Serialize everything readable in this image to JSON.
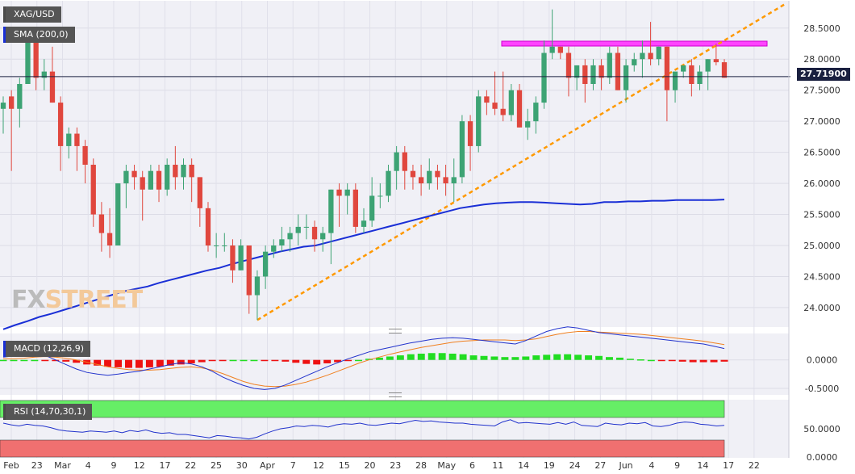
{
  "chart_data": [
    {
      "type": "candlestick",
      "title": "XAG/USD",
      "yticks": [
        24.0,
        24.5,
        25.0,
        25.5,
        26.0,
        26.5,
        27.0,
        27.5,
        28.0,
        28.5
      ],
      "yticklabels": [
        "24.0000",
        "24.5000",
        "25.0000",
        "25.5000",
        "26.0000",
        "26.5000",
        "27.0000",
        "27.5000",
        "28.0000",
        "28.5000"
      ],
      "ylim": [
        23.7,
        28.9
      ],
      "x_ticks": [
        "Feb",
        "23",
        "Mar",
        "4",
        "9",
        "12",
        "17",
        "22",
        "25",
        "30",
        "Apr",
        "7",
        "12",
        "15",
        "20",
        "23",
        "28",
        "May",
        "6",
        "11",
        "14",
        "19",
        "24",
        "27",
        "Jun",
        "4",
        "9",
        "14",
        "17",
        "22"
      ],
      "last_price_label": "27.71900",
      "candles": [
        [
          "Feb 17",
          27.2,
          27.3,
          26.8,
          27.4
        ],
        [
          "Feb 18",
          27.4,
          27.2,
          26.2,
          27.5
        ],
        [
          "Feb 19",
          27.2,
          27.6,
          26.9,
          27.7
        ],
        [
          "Feb 22",
          27.6,
          28.3,
          27.6,
          28.4
        ],
        [
          "Feb 23",
          28.3,
          27.7,
          27.5,
          28.5
        ],
        [
          "Feb 24",
          27.7,
          27.8,
          27.5,
          28.0
        ],
        [
          "Feb 25",
          27.8,
          27.3,
          27.3,
          28.2
        ],
        [
          "Feb 26",
          27.3,
          26.6,
          26.2,
          27.4
        ],
        [
          "Mar 1",
          26.6,
          26.8,
          26.4,
          26.9
        ],
        [
          "Mar 2",
          26.8,
          26.6,
          26.2,
          26.9
        ],
        [
          "Mar 3",
          26.6,
          26.3,
          26.0,
          26.7
        ],
        [
          "Mar 4",
          26.3,
          25.5,
          25.3,
          26.4
        ],
        [
          "Mar 5",
          25.5,
          25.2,
          24.9,
          25.7
        ],
        [
          "Mar 8",
          25.2,
          25.0,
          24.8,
          25.6
        ],
        [
          "Mar 9",
          25.0,
          26.0,
          25.0,
          26.0
        ],
        [
          "Mar 10",
          26.0,
          26.2,
          25.6,
          26.3
        ],
        [
          "Mar 11",
          26.2,
          26.1,
          25.9,
          26.3
        ],
        [
          "Mar 12",
          26.1,
          25.9,
          25.4,
          26.2
        ],
        [
          "Mar 15",
          25.9,
          26.2,
          25.9,
          26.3
        ],
        [
          "Mar 16",
          26.2,
          25.9,
          25.7,
          26.3
        ],
        [
          "Mar 17",
          25.9,
          26.3,
          25.8,
          26.4
        ],
        [
          "Mar 18",
          26.3,
          26.1,
          25.9,
          26.6
        ],
        [
          "Mar 19",
          26.1,
          26.3,
          25.9,
          26.4
        ],
        [
          "Mar 22",
          26.3,
          26.1,
          25.7,
          26.4
        ],
        [
          "Mar 23",
          26.1,
          25.6,
          25.3,
          26.1
        ],
        [
          "Mar 24",
          25.6,
          25.0,
          24.9,
          25.7
        ],
        [
          "Mar 25",
          25.0,
          25.0,
          24.8,
          25.2
        ],
        [
          "Mar 26",
          25.0,
          25.0,
          24.9,
          25.2
        ],
        [
          "Mar 29",
          25.0,
          24.6,
          24.4,
          25.1
        ],
        [
          "Mar 30",
          24.6,
          25.0,
          24.6,
          25.1
        ],
        [
          "Mar 31",
          25.0,
          24.2,
          23.9,
          25.0
        ],
        [
          "Apr 1",
          24.2,
          24.5,
          23.8,
          24.6
        ],
        [
          "Apr 2",
          24.5,
          24.9,
          24.3,
          25.0
        ],
        [
          "Apr 5",
          24.9,
          25.0,
          24.8,
          25.1
        ],
        [
          "Apr 6",
          25.0,
          25.1,
          24.9,
          25.3
        ],
        [
          "Apr 7",
          25.1,
          25.2,
          24.9,
          25.3
        ],
        [
          "Apr 8",
          25.2,
          25.3,
          25.0,
          25.5
        ],
        [
          "Apr 9",
          25.3,
          25.3,
          25.1,
          25.5
        ],
        [
          "Apr 12",
          25.3,
          25.1,
          24.9,
          25.4
        ],
        [
          "Apr 13",
          25.1,
          25.2,
          24.9,
          25.3
        ],
        [
          "Apr 14",
          25.2,
          25.9,
          24.7,
          25.9
        ],
        [
          "Apr 15",
          25.9,
          25.8,
          25.3,
          26.0
        ],
        [
          "Apr 16",
          25.8,
          25.9,
          25.5,
          26.0
        ],
        [
          "Apr 19",
          25.9,
          25.3,
          25.2,
          26.0
        ],
        [
          "Apr 20",
          25.3,
          25.4,
          25.2,
          25.6
        ],
        [
          "Apr 21",
          25.4,
          25.8,
          25.3,
          26.1
        ],
        [
          "Apr 22",
          25.8,
          25.8,
          25.6,
          26.0
        ],
        [
          "Apr 23",
          25.8,
          26.2,
          25.7,
          26.3
        ],
        [
          "Apr 26",
          26.2,
          26.5,
          25.9,
          26.6
        ],
        [
          "Apr 27",
          26.5,
          26.2,
          25.9,
          26.6
        ],
        [
          "Apr 28",
          26.2,
          26.1,
          25.9,
          26.3
        ],
        [
          "Apr 29",
          26.1,
          26.0,
          25.8,
          26.3
        ],
        [
          "Apr 30",
          26.0,
          26.2,
          25.9,
          26.4
        ],
        [
          "May 3",
          26.2,
          26.1,
          25.9,
          26.3
        ],
        [
          "May 4",
          26.1,
          26.0,
          25.8,
          26.3
        ],
        [
          "May 5",
          26.0,
          26.1,
          25.7,
          26.4
        ],
        [
          "May 6",
          26.1,
          27.0,
          26.0,
          27.1
        ],
        [
          "May 7",
          27.0,
          26.6,
          26.2,
          27.1
        ],
        [
          "May 10",
          26.6,
          27.4,
          26.5,
          27.5
        ],
        [
          "May 11",
          27.4,
          27.3,
          27.1,
          27.5
        ],
        [
          "May 12",
          27.3,
          27.2,
          27.1,
          27.8
        ],
        [
          "May 13",
          27.2,
          27.1,
          27.0,
          27.8
        ],
        [
          "May 14",
          27.1,
          27.5,
          27.0,
          27.6
        ],
        [
          "May 17",
          27.5,
          26.9,
          26.9,
          27.6
        ],
        [
          "May 18",
          26.9,
          27.0,
          26.7,
          27.2
        ],
        [
          "May 19",
          27.0,
          27.3,
          26.8,
          27.4
        ],
        [
          "May 20",
          27.3,
          28.1,
          27.2,
          28.3
        ],
        [
          "May 21",
          28.1,
          28.2,
          28.0,
          28.8
        ],
        [
          "May 24",
          28.2,
          28.1,
          28.0,
          28.2
        ],
        [
          "May 25",
          28.1,
          27.7,
          27.4,
          28.2
        ],
        [
          "May 26",
          27.7,
          27.9,
          27.5,
          27.9
        ],
        [
          "May 27",
          27.9,
          27.6,
          27.3,
          28.0
        ],
        [
          "May 28",
          27.6,
          27.9,
          27.5,
          28.0
        ],
        [
          "Jun 1",
          27.9,
          27.7,
          27.5,
          28.0
        ],
        [
          "Jun 2",
          27.7,
          28.1,
          27.6,
          28.2
        ],
        [
          "Jun 3",
          28.1,
          27.5,
          27.5,
          28.2
        ],
        [
          "Jun 4",
          27.5,
          27.9,
          27.3,
          28.0
        ],
        [
          "Jun 7",
          27.9,
          28.0,
          27.8,
          28.1
        ],
        [
          "Jun 8",
          28.0,
          28.1,
          27.7,
          28.3
        ],
        [
          "Jun 9",
          28.1,
          28.0,
          27.9,
          28.6
        ],
        [
          "Jun 10",
          28.0,
          28.2,
          27.9,
          28.2
        ],
        [
          "Jun 11",
          28.2,
          27.5,
          27.0,
          28.2
        ],
        [
          "Jun 14",
          27.5,
          27.8,
          27.3,
          27.8
        ],
        [
          "Jun 15",
          27.8,
          27.9,
          27.7,
          27.9
        ],
        [
          "Jun 16",
          27.9,
          27.6,
          27.4,
          28.0
        ],
        [
          "Jun 17",
          27.6,
          27.8,
          27.5,
          27.9
        ],
        [
          "Jun 18",
          27.8,
          28.0,
          27.5,
          28.0
        ],
        [
          "Jun 21",
          28.0,
          27.95,
          27.9,
          28.25
        ],
        [
          "Jun 22",
          27.95,
          27.7,
          27.7,
          28.0
        ]
      ],
      "sma_label": "SMA (200,0)",
      "sma_values": [
        23.65,
        23.72,
        23.78,
        23.85,
        23.9,
        23.96,
        24.02,
        24.08,
        24.14,
        24.2,
        24.26,
        24.3,
        24.34,
        24.4,
        24.45,
        24.5,
        24.55,
        24.6,
        24.64,
        24.7,
        24.75,
        24.8,
        24.85,
        24.9,
        24.94,
        24.98,
        25.0,
        25.05,
        25.1,
        25.15,
        25.2,
        25.25,
        25.3,
        25.35,
        25.4,
        25.45,
        25.5,
        25.55,
        25.6,
        25.63,
        25.66,
        25.68,
        25.69,
        25.7,
        25.7,
        25.69,
        25.68,
        25.67,
        25.66,
        25.67,
        25.7,
        25.7,
        25.71,
        25.71,
        25.72,
        25.72,
        25.73,
        25.73,
        25.73,
        25.73,
        25.74
      ],
      "resistance_level": 28.25,
      "trendline": {
        "from": [
          "Apr 1",
          23.8
        ],
        "to": [
          "Jun 22",
          28.9
        ]
      }
    },
    {
      "type": "macd",
      "label": "MACD (12,26,9)",
      "yticklabels": [
        "0.0000",
        "-0.5000"
      ],
      "ylim": [
        -0.6,
        0.45
      ],
      "histogram": [
        0.0,
        0.0,
        0.0,
        0.0,
        -0.01,
        -0.02,
        -0.03,
        -0.05,
        -0.08,
        -0.1,
        -0.12,
        -0.13,
        -0.14,
        -0.14,
        -0.13,
        -0.12,
        -0.1,
        -0.08,
        -0.06,
        -0.04,
        -0.02,
        -0.01,
        0.0,
        0.0,
        0.0,
        -0.01,
        -0.02,
        -0.03,
        -0.05,
        -0.07,
        -0.08,
        -0.06,
        -0.04,
        -0.02,
        0.0,
        0.02,
        0.04,
        0.06,
        0.08,
        0.1,
        0.11,
        0.12,
        0.12,
        0.11,
        0.1,
        0.08,
        0.07,
        0.06,
        0.05,
        0.05,
        0.06,
        0.08,
        0.09,
        0.1,
        0.1,
        0.09,
        0.08,
        0.07,
        0.05,
        0.04,
        0.02,
        0.01,
        0.0,
        -0.01,
        -0.02,
        -0.03,
        -0.04,
        -0.04,
        -0.04,
        -0.03
      ],
      "macd_line": [
        0.05,
        0.07,
        0.1,
        0.14,
        0.08,
        0.0,
        -0.08,
        -0.16,
        -0.22,
        -0.25,
        -0.27,
        -0.25,
        -0.22,
        -0.2,
        -0.16,
        -0.12,
        -0.08,
        -0.05,
        -0.07,
        -0.12,
        -0.2,
        -0.3,
        -0.38,
        -0.45,
        -0.5,
        -0.52,
        -0.5,
        -0.44,
        -0.36,
        -0.28,
        -0.2,
        -0.12,
        -0.05,
        0.02,
        0.08,
        0.14,
        0.18,
        0.22,
        0.26,
        0.3,
        0.33,
        0.36,
        0.38,
        0.39,
        0.38,
        0.36,
        0.34,
        0.32,
        0.3,
        0.28,
        0.34,
        0.42,
        0.5,
        0.55,
        0.58,
        0.56,
        0.52,
        0.48,
        0.46,
        0.44,
        0.42,
        0.4,
        0.38,
        0.36,
        0.34,
        0.32,
        0.3,
        0.28,
        0.24,
        0.2
      ],
      "signal_line": [
        0.02,
        0.02,
        0.03,
        0.05,
        0.06,
        0.05,
        0.03,
        0.0,
        -0.04,
        -0.08,
        -0.12,
        -0.15,
        -0.17,
        -0.18,
        -0.18,
        -0.17,
        -0.15,
        -0.13,
        -0.12,
        -0.14,
        -0.18,
        -0.24,
        -0.31,
        -0.38,
        -0.43,
        -0.46,
        -0.47,
        -0.46,
        -0.43,
        -0.39,
        -0.33,
        -0.27,
        -0.2,
        -0.13,
        -0.06,
        0.0,
        0.05,
        0.1,
        0.14,
        0.18,
        0.22,
        0.25,
        0.28,
        0.31,
        0.33,
        0.34,
        0.35,
        0.35,
        0.35,
        0.34,
        0.35,
        0.37,
        0.41,
        0.45,
        0.48,
        0.5,
        0.5,
        0.49,
        0.48,
        0.47,
        0.46,
        0.45,
        0.43,
        0.41,
        0.39,
        0.37,
        0.35,
        0.33,
        0.3,
        0.27
      ]
    },
    {
      "type": "rsi",
      "label": "RSI (14,70,30,1)",
      "yticklabels": [
        "50.0000",
        "0.0000"
      ],
      "ylim": [
        0,
        100
      ],
      "overbought": 70,
      "oversold": 30,
      "values": [
        60,
        57,
        55,
        58,
        56,
        55,
        52,
        48,
        46,
        45,
        44,
        46,
        45,
        44,
        46,
        43,
        47,
        45,
        48,
        44,
        42,
        43,
        40,
        40,
        38,
        36,
        34,
        38,
        37,
        35,
        34,
        32,
        35,
        41,
        46,
        50,
        52,
        55,
        54,
        56,
        55,
        53,
        57,
        59,
        58,
        60,
        57,
        56,
        58,
        60,
        59,
        62,
        65,
        63,
        64,
        62,
        61,
        60,
        60,
        58,
        57,
        56,
        55,
        62,
        66,
        60,
        61,
        60,
        59,
        58,
        61,
        58,
        62,
        56,
        55,
        54,
        60,
        58,
        57,
        60,
        59,
        61,
        55,
        54,
        56,
        60,
        62,
        61,
        58,
        57,
        55,
        56
      ]
    }
  ]
}
